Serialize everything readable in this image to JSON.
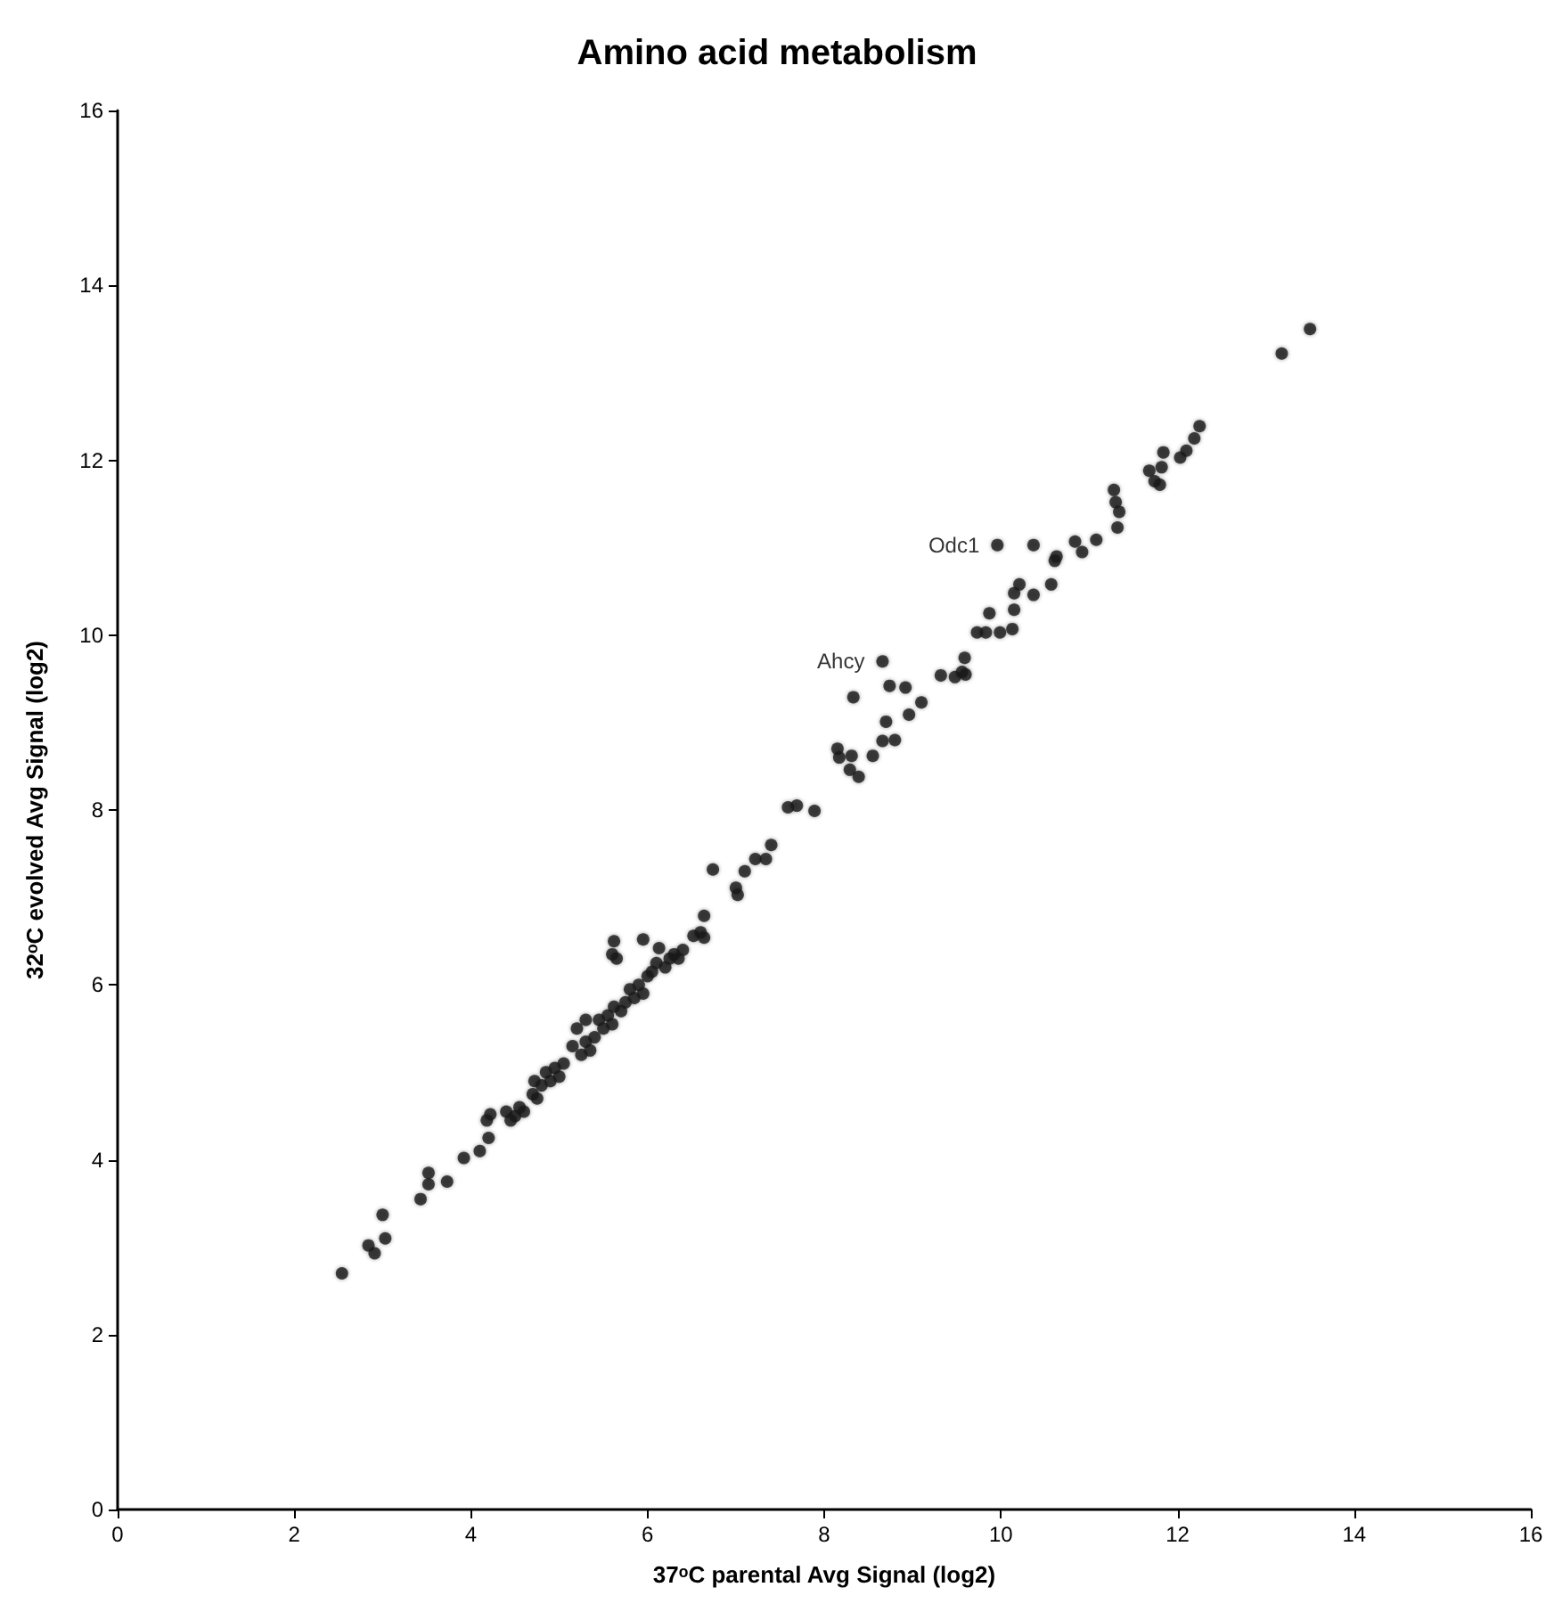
{
  "chart_data": {
    "type": "scatter",
    "title": "Amino acid metabolism",
    "xlabel": "37ᵒC parental Avg Signal (log2)",
    "ylabel": "32ᵒC evolved Avg Signal (log2)",
    "xlim": [
      0,
      16
    ],
    "ylim": [
      0,
      16
    ],
    "xticks": [
      0,
      2,
      4,
      6,
      8,
      10,
      12,
      14,
      16
    ],
    "yticks": [
      0,
      2,
      4,
      6,
      8,
      10,
      12,
      14,
      16
    ],
    "grid": false,
    "marker": "circle",
    "annotations": [
      {
        "text": "Odc1",
        "x": 9.96,
        "y": 11.03
      },
      {
        "text": "Ahcy",
        "x": 8.66,
        "y": 9.7
      }
    ],
    "series": [
      {
        "color": "#1a1a1a",
        "x": [
          2.54,
          2.84,
          2.91,
          3.0,
          3.03,
          3.43,
          3.52,
          3.52,
          3.73,
          3.92,
          4.1,
          4.2,
          4.18,
          4.22,
          4.4,
          4.5,
          4.45,
          4.6,
          4.55,
          4.7,
          4.72,
          4.8,
          4.75,
          4.85,
          4.9,
          4.95,
          5.0,
          5.05,
          5.15,
          5.2,
          5.25,
          5.3,
          5.3,
          5.35,
          5.4,
          5.45,
          5.5,
          5.55,
          5.6,
          5.62,
          5.6,
          5.62,
          5.65,
          5.7,
          5.75,
          5.8,
          5.85,
          5.9,
          5.95,
          5.95,
          6.0,
          6.05,
          6.1,
          6.13,
          6.2,
          6.25,
          6.3,
          6.35,
          6.4,
          6.52,
          6.6,
          6.64,
          6.64,
          6.74,
          7.0,
          7.02,
          7.1,
          7.22,
          7.34,
          7.4,
          7.59,
          7.69,
          7.89,
          8.15,
          8.17,
          8.29,
          8.31,
          8.33,
          8.39,
          8.55,
          8.66,
          8.66,
          8.7,
          8.74,
          8.8,
          8.92,
          8.96,
          9.1,
          9.32,
          9.48,
          9.56,
          9.59,
          9.6,
          9.73,
          9.83,
          9.87,
          9.99,
          10.13,
          10.15,
          10.15,
          10.21,
          10.37,
          10.57,
          10.61,
          10.63,
          10.84,
          10.92,
          9.96,
          10.37,
          11.08,
          11.28,
          11.3,
          11.34,
          11.32,
          11.68,
          11.74,
          11.8,
          11.82,
          11.84,
          12.03,
          12.1,
          12.19,
          12.25,
          13.18,
          13.5
        ],
        "values": [
          2.7,
          3.02,
          2.93,
          3.37,
          3.1,
          3.55,
          3.72,
          3.85,
          3.75,
          4.02,
          4.1,
          4.25,
          4.45,
          4.52,
          4.55,
          4.5,
          4.45,
          4.55,
          4.6,
          4.75,
          4.9,
          4.85,
          4.7,
          5.0,
          4.9,
          5.05,
          4.95,
          5.1,
          5.3,
          5.5,
          5.2,
          5.35,
          5.6,
          5.25,
          5.4,
          5.6,
          5.5,
          5.65,
          5.55,
          5.75,
          6.35,
          6.5,
          6.3,
          5.7,
          5.8,
          5.95,
          5.85,
          6.0,
          6.52,
          5.9,
          6.1,
          6.15,
          6.25,
          6.42,
          6.2,
          6.3,
          6.35,
          6.3,
          6.4,
          6.56,
          6.6,
          6.79,
          6.54,
          7.32,
          7.11,
          7.03,
          7.3,
          7.44,
          7.44,
          7.6,
          8.03,
          8.05,
          7.99,
          8.7,
          8.6,
          8.46,
          8.62,
          9.29,
          8.38,
          8.62,
          9.7,
          8.79,
          9.01,
          9.42,
          8.8,
          9.4,
          9.09,
          9.23,
          9.54,
          9.52,
          9.58,
          9.74,
          9.55,
          10.03,
          10.03,
          10.25,
          10.03,
          10.07,
          10.29,
          10.48,
          10.58,
          10.46,
          10.58,
          10.85,
          10.9,
          11.07,
          10.95,
          11.03,
          11.03,
          11.09,
          11.66,
          11.52,
          11.41,
          11.23,
          11.88,
          11.76,
          11.72,
          11.92,
          12.09,
          12.03,
          12.11,
          12.25,
          12.39,
          13.22,
          13.5
        ]
      }
    ]
  }
}
